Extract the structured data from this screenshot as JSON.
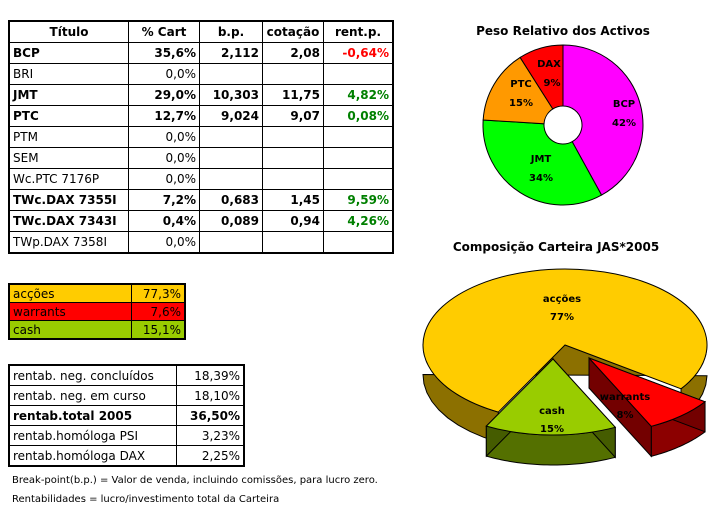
{
  "holdings": {
    "headers": [
      "Título",
      "% Cart",
      "b.p.",
      "cotação",
      "rent.p."
    ],
    "rows": [
      {
        "name": "BCP",
        "pct": "35,6%",
        "bp": "2,112",
        "cot": "2,08",
        "rent": "-0,64%",
        "bold": true,
        "tone": "neg"
      },
      {
        "name": "BRI",
        "pct": "0,0%",
        "bp": "",
        "cot": "",
        "rent": "",
        "bold": false,
        "tone": ""
      },
      {
        "name": "JMT",
        "pct": "29,0%",
        "bp": "10,303",
        "cot": "11,75",
        "rent": "4,82%",
        "bold": true,
        "tone": "pos"
      },
      {
        "name": "PTC",
        "pct": "12,7%",
        "bp": "9,024",
        "cot": "9,07",
        "rent": "0,08%",
        "bold": true,
        "tone": "pos"
      },
      {
        "name": "PTM",
        "pct": "0,0%",
        "bp": "",
        "cot": "",
        "rent": "",
        "bold": false,
        "tone": ""
      },
      {
        "name": "SEM",
        "pct": "0,0%",
        "bp": "",
        "cot": "",
        "rent": "",
        "bold": false,
        "tone": ""
      },
      {
        "name": "Wc.PTC 7176P",
        "pct": "0,0%",
        "bp": "",
        "cot": "",
        "rent": "",
        "bold": false,
        "tone": ""
      },
      {
        "name": "TWc.DAX 7355I",
        "pct": "7,2%",
        "bp": "0,683",
        "cot": "1,45",
        "rent": "9,59%",
        "bold": true,
        "tone": "pos"
      },
      {
        "name": "TWc.DAX 7343I",
        "pct": "0,4%",
        "bp": "0,089",
        "cot": "0,94",
        "rent": "4,26%",
        "bold": true,
        "tone": "pos"
      },
      {
        "name": "TWp.DAX 7358I",
        "pct": "0,0%",
        "bp": "",
        "cot": "",
        "rent": "",
        "bold": false,
        "tone": ""
      }
    ]
  },
  "allocation": [
    {
      "name": "acções",
      "value": "77,3%",
      "color": "#ffcc00"
    },
    {
      "name": "warrants",
      "value": "7,6%",
      "color": "#ff0000"
    },
    {
      "name": "cash",
      "value": "15,1%",
      "color": "#99cc00"
    }
  ],
  "returns": [
    {
      "name": "rentab. neg. concluídos",
      "value": "18,39%",
      "bold": false
    },
    {
      "name": "rentab. neg. em curso",
      "value": "18,10%",
      "bold": false
    },
    {
      "name": "rentab.total 2005",
      "value": "36,50%",
      "bold": true
    },
    {
      "name": "rentab.homóloga PSI",
      "value": "3,23%",
      "bold": false
    },
    {
      "name": "rentab.homóloga DAX",
      "value": "2,25%",
      "bold": false
    }
  ],
  "notes": {
    "breakpoint": "Break-point(b.p.) = Valor de venda, incluindo comissões, para lucro zero.",
    "rentab": "Rentabilidades = lucro/investimento total da Carteira"
  },
  "chart_data": [
    {
      "type": "pie",
      "title": "Peso Relativo dos Activos",
      "slices": [
        {
          "label": "BCP",
          "value": 42,
          "display": "42%",
          "color": "#ff00ff"
        },
        {
          "label": "JMT",
          "value": 34,
          "display": "34%",
          "color": "#00ff00"
        },
        {
          "label": "PTC",
          "value": 15,
          "display": "15%",
          "color": "#ff9900"
        },
        {
          "label": "DAX",
          "value": 9,
          "display": "9%",
          "color": "#ff0000"
        }
      ]
    },
    {
      "type": "pie",
      "title": "Composição Carteira JAS*2005",
      "slices": [
        {
          "label": "acções",
          "value": 77,
          "display": "77%",
          "color": "#ffcc00"
        },
        {
          "label": "warrants",
          "value": 8,
          "display": "8%",
          "color": "#ff0000"
        },
        {
          "label": "cash",
          "value": 15,
          "display": "15%",
          "color": "#99cc00"
        }
      ]
    }
  ]
}
